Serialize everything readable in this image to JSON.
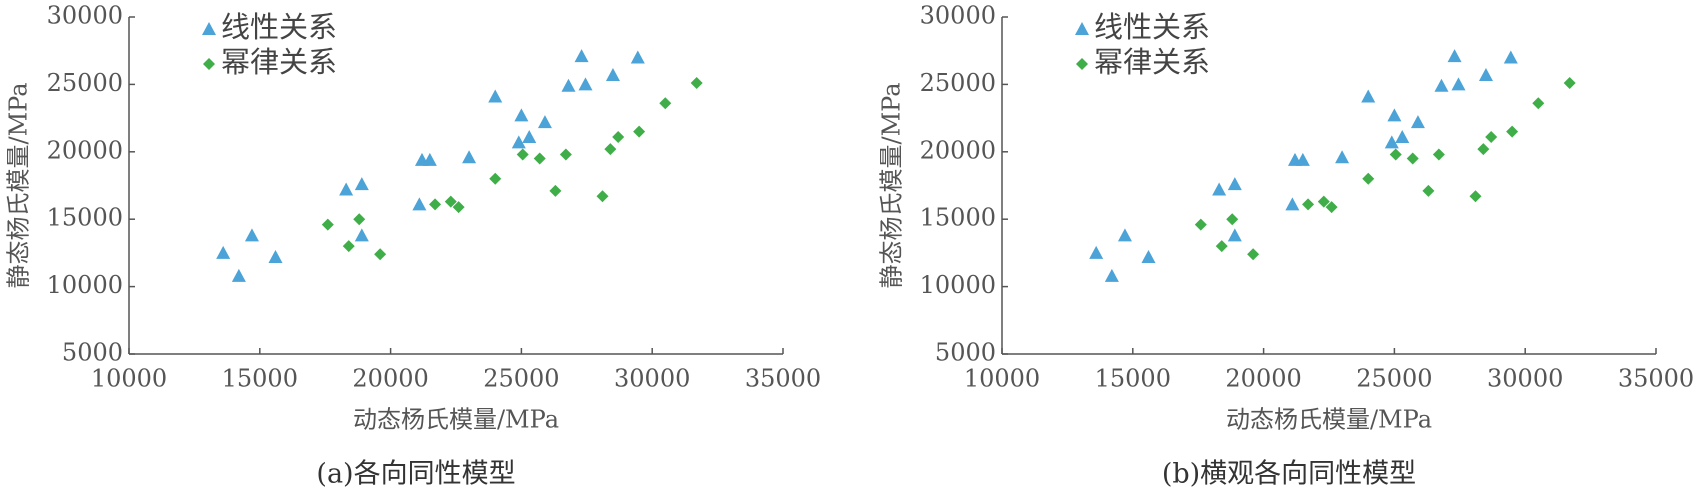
{
  "chart_data": [
    {
      "type": "scatter",
      "caption": "(a)各向同性模型",
      "xlabel": "动态杨氏模量/MPa",
      "ylabel": "静态杨氏模量/MPa",
      "xlim": [
        10000,
        35000
      ],
      "ylim": [
        5000,
        30000
      ],
      "xticks": [
        10000,
        15000,
        20000,
        25000,
        30000,
        35000
      ],
      "yticks": [
        5000,
        10000,
        15000,
        20000,
        25000,
        30000
      ],
      "legend": "upper left",
      "series": [
        {
          "name": "线性关系",
          "color": "#4ba3d8",
          "marker": "triangle",
          "x": [
            13600,
            14200,
            14700,
            15600,
            18300,
            18900,
            18900,
            21100,
            21200,
            21500,
            23000,
            24000,
            24900,
            25000,
            25300,
            25900,
            26800,
            27300,
            27450,
            28500,
            29450
          ],
          "values": [
            12500,
            10800,
            13800,
            12200,
            17200,
            17600,
            13800,
            16100,
            19400,
            19400,
            19600,
            24100,
            20700,
            22700,
            21100,
            22200,
            24900,
            27100,
            25000,
            25700,
            27000
          ]
        },
        {
          "name": "幂律关系",
          "color": "#3fae49",
          "marker": "diamond",
          "x": [
            17600,
            18400,
            18800,
            19600,
            21700,
            22300,
            22600,
            24000,
            25050,
            25700,
            26300,
            26700,
            28100,
            28400,
            28700,
            29500,
            30500,
            31700
          ],
          "values": [
            14600,
            13000,
            15000,
            12400,
            16100,
            16300,
            15900,
            18000,
            19800,
            19500,
            17100,
            19800,
            16700,
            20200,
            21100,
            21500,
            23600,
            25100
          ]
        }
      ]
    },
    {
      "type": "scatter",
      "caption": "(b)横观各向同性模型",
      "xlabel": "动态杨氏模量/MPa",
      "ylabel": "静态杨氏模量/MPa",
      "xlim": [
        10000,
        35000
      ],
      "ylim": [
        5000,
        30000
      ],
      "xticks": [
        10000,
        15000,
        20000,
        25000,
        30000,
        35000
      ],
      "yticks": [
        5000,
        10000,
        15000,
        20000,
        25000,
        30000
      ],
      "legend": "upper left",
      "series": [
        {
          "name": "线性关系",
          "color": "#4ba3d8",
          "marker": "triangle",
          "x": [
            13600,
            14200,
            14700,
            15600,
            18300,
            18900,
            18900,
            21100,
            21200,
            21500,
            23000,
            24000,
            24900,
            25000,
            25300,
            25900,
            26800,
            27300,
            27450,
            28500,
            29450
          ],
          "values": [
            12500,
            10800,
            13800,
            12200,
            17200,
            17600,
            13800,
            16100,
            19400,
            19400,
            19600,
            24100,
            20700,
            22700,
            21100,
            22200,
            24900,
            27100,
            25000,
            25700,
            27000
          ]
        },
        {
          "name": "幂律关系",
          "color": "#3fae49",
          "marker": "diamond",
          "x": [
            17600,
            18400,
            18800,
            19600,
            21700,
            22300,
            22600,
            24000,
            25050,
            25700,
            26300,
            26700,
            28100,
            28400,
            28700,
            29500,
            30500,
            31700
          ],
          "values": [
            14600,
            13000,
            15000,
            12400,
            16100,
            16300,
            15900,
            18000,
            19800,
            19500,
            17100,
            19800,
            16700,
            20200,
            21100,
            21500,
            23600,
            25100
          ]
        }
      ]
    }
  ]
}
